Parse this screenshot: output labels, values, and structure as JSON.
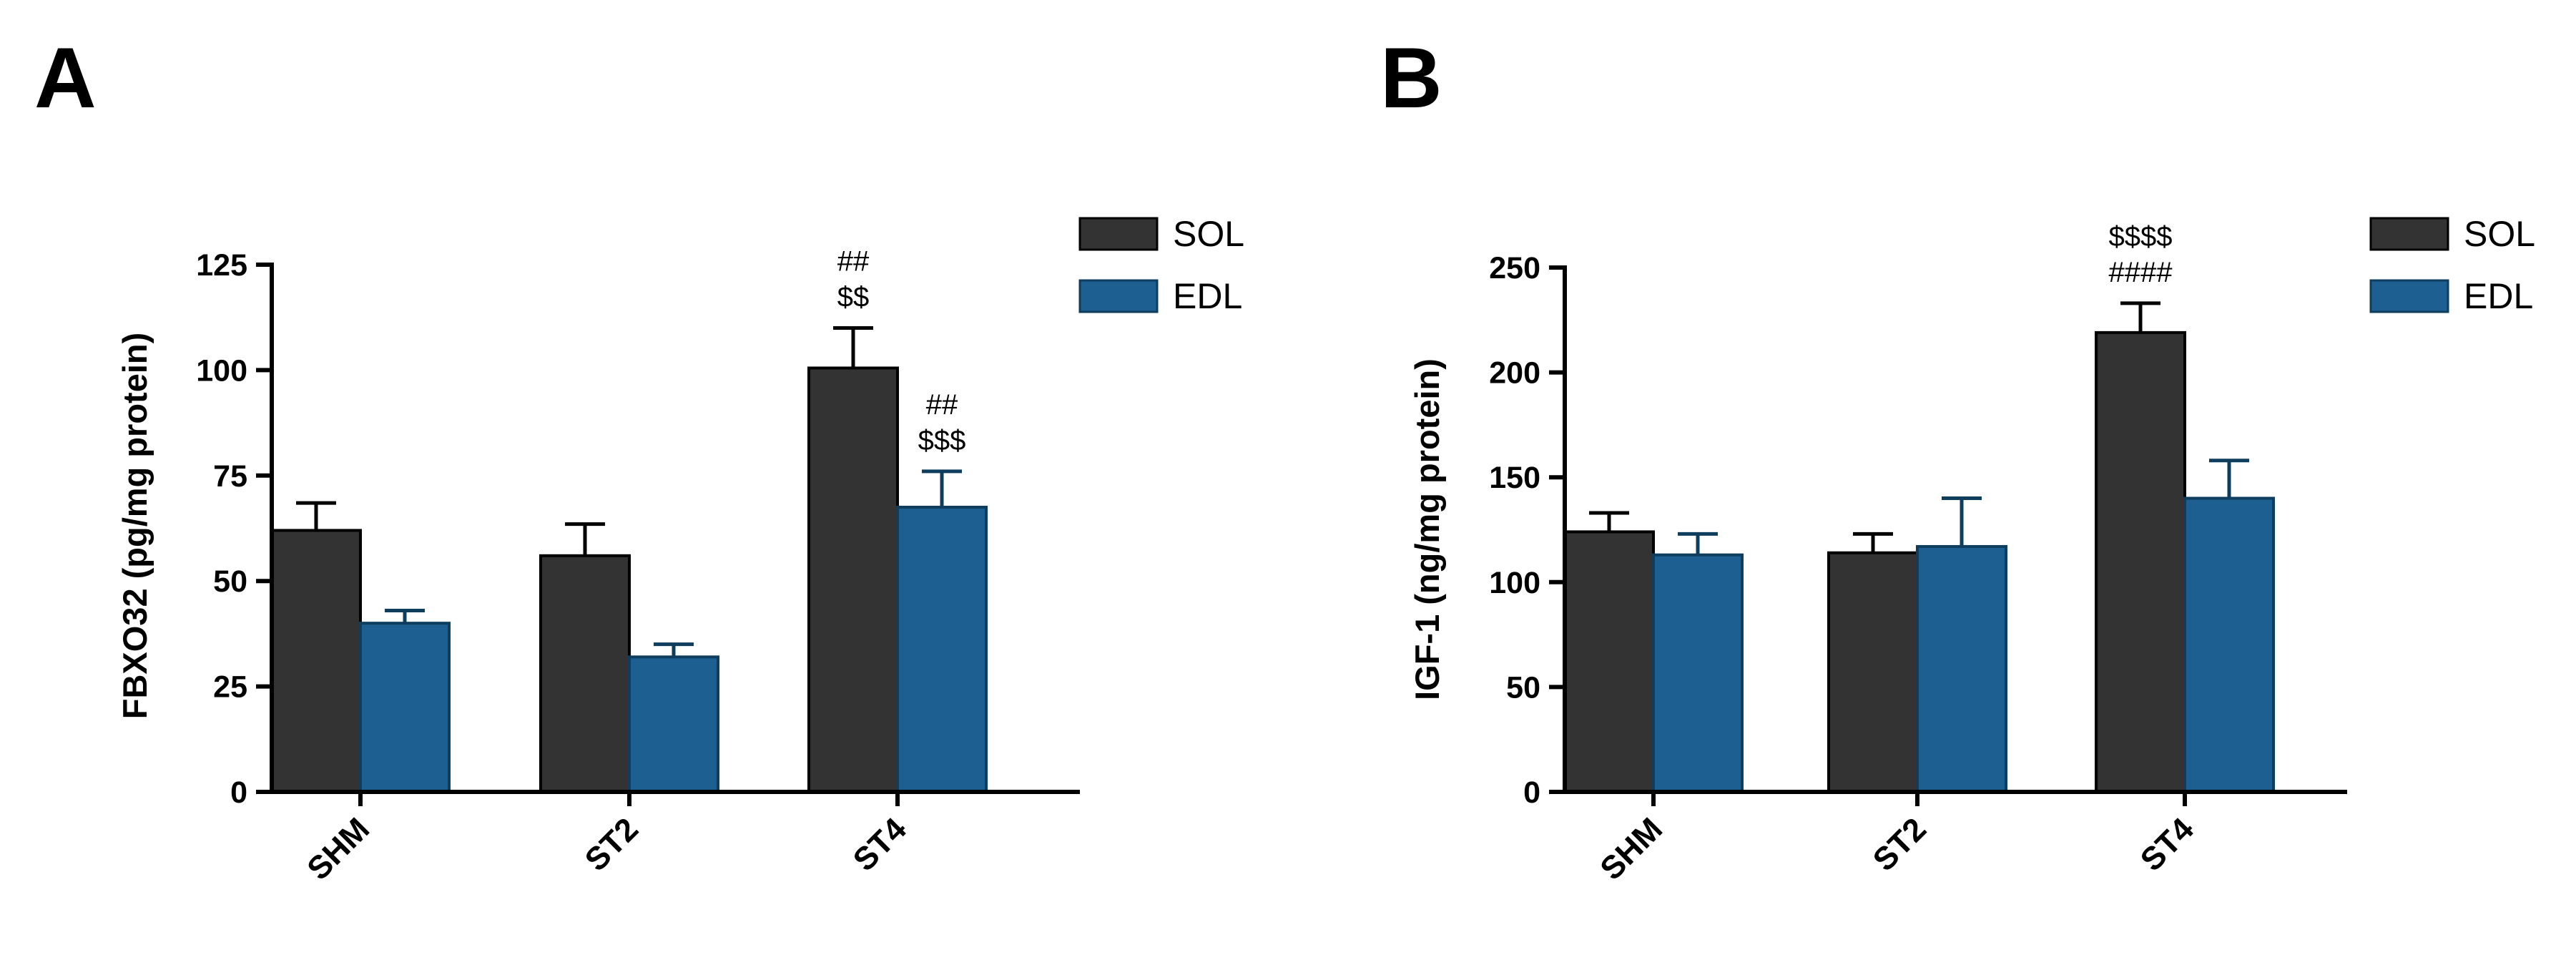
{
  "chart_data": [
    {
      "panel": "A",
      "type": "bar",
      "title": "",
      "xlabel": "",
      "ylabel": "FBXO32 (pg/mg protein)",
      "categories": [
        "SHM",
        "ST2",
        "ST4"
      ],
      "ylim": [
        0,
        125
      ],
      "yticks": [
        0,
        25,
        50,
        75,
        100,
        125
      ],
      "legend": "top-right",
      "series": [
        {
          "name": "SOL",
          "color": "#333333",
          "values": [
            62,
            56,
            100.5
          ],
          "errors": [
            6.5,
            7.5,
            9.5
          ]
        },
        {
          "name": "EDL",
          "color": "#1d5f91",
          "values": [
            40,
            32,
            67.5
          ],
          "errors": [
            3,
            3,
            8.5
          ]
        }
      ],
      "annotations": [
        {
          "category": "ST4",
          "series": "SOL",
          "lines": [
            "##",
            "$$"
          ]
        },
        {
          "category": "ST4",
          "series": "EDL",
          "lines": [
            "##",
            "$$$"
          ]
        }
      ]
    },
    {
      "panel": "B",
      "type": "bar",
      "title": "",
      "xlabel": "",
      "ylabel": "IGF-1 (ng/mg protein)",
      "categories": [
        "SHM",
        "ST2",
        "ST4"
      ],
      "ylim": [
        0,
        250
      ],
      "yticks": [
        0,
        50,
        100,
        150,
        200,
        250
      ],
      "legend": "top-right",
      "series": [
        {
          "name": "SOL",
          "color": "#333333",
          "values": [
            124,
            114,
            219
          ],
          "errors": [
            9,
            9,
            14
          ]
        },
        {
          "name": "EDL",
          "color": "#1d5f91",
          "values": [
            113,
            117,
            140
          ],
          "errors": [
            10,
            23,
            18
          ]
        }
      ],
      "annotations": [
        {
          "category": "ST4",
          "series": "SOL",
          "lines": [
            "$$$$",
            "####"
          ]
        }
      ]
    }
  ]
}
